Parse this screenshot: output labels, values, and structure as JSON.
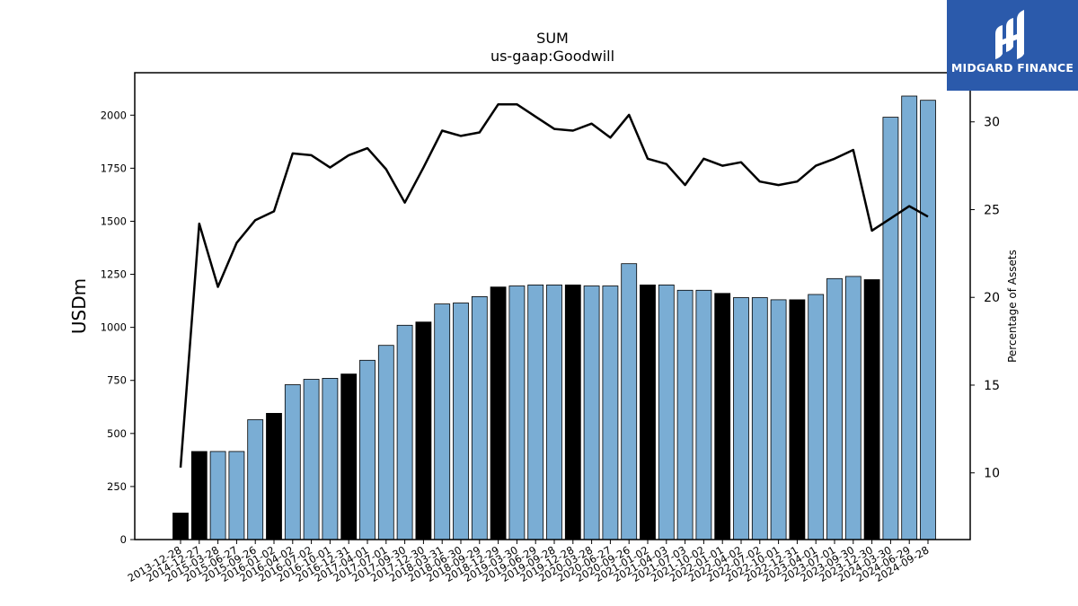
{
  "brand": {
    "name": "MIDGARD FINANCE",
    "icon": "midgard-logo-icon",
    "background": "#2b5aab"
  },
  "chart_data": {
    "type": "bar",
    "title": "SUM",
    "subtitle": "us-gaap:Goodwill",
    "ylabel": "USDm",
    "y2label": "Percentage of Assets",
    "ylim": [
      0,
      2200
    ],
    "y2lim": [
      6.2,
      32.8
    ],
    "yticks": [
      0,
      250,
      500,
      750,
      1000,
      1250,
      1500,
      1750,
      2000
    ],
    "y2ticks": [
      10,
      15,
      20,
      25,
      30
    ],
    "grid": false,
    "colors": {
      "bar": "#7aadd4",
      "bar_highlight": "#000000",
      "line": "#000000"
    },
    "categories": [
      "2013-12-28",
      "2014-12-27",
      "2015-03-28",
      "2015-06-27",
      "2015-09-26",
      "2016-01-02",
      "2016-04-02",
      "2016-07-02",
      "2016-10-01",
      "2016-12-31",
      "2017-04-01",
      "2017-07-01",
      "2017-09-30",
      "2017-12-30",
      "2018-03-31",
      "2018-06-30",
      "2018-09-29",
      "2018-12-29",
      "2019-03-30",
      "2019-06-29",
      "2019-09-28",
      "2019-12-28",
      "2020-03-28",
      "2020-06-27",
      "2020-09-26",
      "2021-01-02",
      "2021-04-03",
      "2021-07-03",
      "2021-10-02",
      "2022-01-01",
      "2022-04-02",
      "2022-07-02",
      "2022-10-01",
      "2022-12-31",
      "2023-04-01",
      "2023-07-01",
      "2023-09-30",
      "2023-12-30",
      "2024-03-30",
      "2024-06-29",
      "2024-09-28"
    ],
    "series": [
      {
        "kind": "bar",
        "axis": "left",
        "values": [
          125,
          415,
          415,
          415,
          565,
          595,
          730,
          755,
          760,
          780,
          845,
          915,
          1010,
          1025,
          1110,
          1115,
          1145,
          1190,
          1195,
          1200,
          1200,
          1200,
          1195,
          1195,
          1300,
          1200,
          1200,
          1175,
          1175,
          1160,
          1140,
          1140,
          1130,
          1130,
          1155,
          1230,
          1240,
          1225,
          1990,
          2090,
          2070
        ],
        "highlight": [
          true,
          true,
          false,
          false,
          false,
          true,
          false,
          false,
          false,
          true,
          false,
          false,
          false,
          true,
          false,
          false,
          false,
          true,
          false,
          false,
          false,
          true,
          false,
          false,
          false,
          true,
          false,
          false,
          false,
          true,
          false,
          false,
          false,
          true,
          false,
          false,
          false,
          true,
          false,
          false,
          false
        ]
      },
      {
        "kind": "line",
        "axis": "right",
        "values": [
          10.3,
          24.2,
          20.6,
          23.1,
          24.4,
          24.9,
          28.2,
          28.1,
          27.4,
          28.1,
          28.5,
          27.3,
          25.4,
          27.4,
          29.5,
          29.2,
          29.4,
          31.0,
          31.0,
          30.3,
          29.6,
          29.5,
          29.9,
          29.1,
          30.4,
          27.9,
          27.6,
          26.4,
          27.9,
          27.5,
          27.7,
          26.6,
          26.4,
          26.6,
          27.5,
          27.9,
          28.4,
          23.8,
          24.5,
          25.2,
          24.6
        ]
      }
    ]
  }
}
